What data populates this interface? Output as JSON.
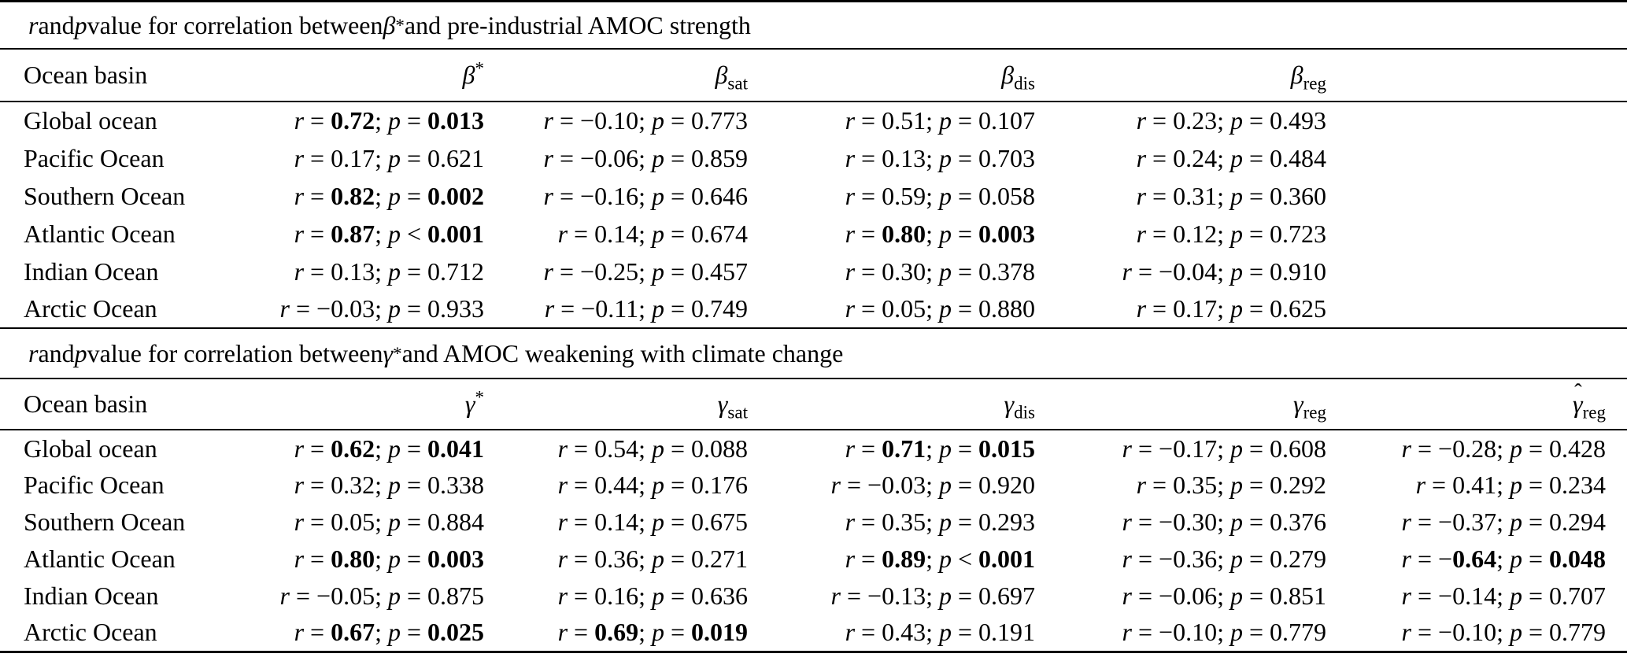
{
  "page": {
    "background": "#ffffff",
    "text_color": "#000000"
  },
  "tables": [
    {
      "title_segments": [
        {
          "t": "r",
          "i": true
        },
        {
          "t": " and "
        },
        {
          "t": "p",
          "i": true
        },
        {
          "t": " value for correlation between "
        },
        {
          "t": "β",
          "i": true
        },
        {
          "t": "*",
          "sup": true
        },
        {
          "t": " and pre-industrial AMOC strength"
        }
      ],
      "columns": [
        {
          "type": "label",
          "label": "Ocean basin"
        },
        {
          "type": "math",
          "base": "β",
          "sup": "*"
        },
        {
          "type": "math",
          "base": "β",
          "sub": "sat"
        },
        {
          "type": "math",
          "base": "β",
          "sub": "dis"
        },
        {
          "type": "math",
          "base": "β",
          "sub": "reg"
        },
        {
          "type": "empty"
        }
      ],
      "rows": [
        {
          "basin": "Global ocean",
          "cells": [
            {
              "r": "0.72",
              "op": "=",
              "p": "0.013",
              "bold": true
            },
            {
              "r": "−0.10",
              "op": "=",
              "p": "0.773",
              "bold": false
            },
            {
              "r": "0.51",
              "op": "=",
              "p": "0.107",
              "bold": false
            },
            {
              "r": "0.23",
              "op": "=",
              "p": "0.493",
              "bold": false
            },
            null
          ]
        },
        {
          "basin": "Pacific Ocean",
          "cells": [
            {
              "r": "0.17",
              "op": "=",
              "p": "0.621",
              "bold": false
            },
            {
              "r": "−0.06",
              "op": "=",
              "p": "0.859",
              "bold": false
            },
            {
              "r": "0.13",
              "op": "=",
              "p": "0.703",
              "bold": false
            },
            {
              "r": "0.24",
              "op": "=",
              "p": "0.484",
              "bold": false
            },
            null
          ]
        },
        {
          "basin": "Southern Ocean",
          "cells": [
            {
              "r": "0.82",
              "op": "=",
              "p": "0.002",
              "bold": true
            },
            {
              "r": "−0.16",
              "op": "=",
              "p": "0.646",
              "bold": false
            },
            {
              "r": "0.59",
              "op": "=",
              "p": "0.058",
              "bold": false
            },
            {
              "r": "0.31",
              "op": "=",
              "p": "0.360",
              "bold": false
            },
            null
          ]
        },
        {
          "basin": "Atlantic Ocean",
          "cells": [
            {
              "r": "0.87",
              "op": "<",
              "p": "0.001",
              "bold": true
            },
            {
              "r": "0.14",
              "op": "=",
              "p": "0.674",
              "bold": false
            },
            {
              "r": "0.80",
              "op": "=",
              "p": "0.003",
              "bold": true
            },
            {
              "r": "0.12",
              "op": "=",
              "p": "0.723",
              "bold": false
            },
            null
          ]
        },
        {
          "basin": "Indian Ocean",
          "cells": [
            {
              "r": "0.13",
              "op": "=",
              "p": "0.712",
              "bold": false
            },
            {
              "r": "−0.25",
              "op": "=",
              "p": "0.457",
              "bold": false
            },
            {
              "r": "0.30",
              "op": "=",
              "p": "0.378",
              "bold": false
            },
            {
              "r": "−0.04",
              "op": "=",
              "p": "0.910",
              "bold": false
            },
            null
          ]
        },
        {
          "basin": "Arctic Ocean",
          "cells": [
            {
              "r": "−0.03",
              "op": "=",
              "p": "0.933",
              "bold": false
            },
            {
              "r": "−0.11",
              "op": "=",
              "p": "0.749",
              "bold": false
            },
            {
              "r": "0.05",
              "op": "=",
              "p": "0.880",
              "bold": false
            },
            {
              "r": "0.17",
              "op": "=",
              "p": "0.625",
              "bold": false
            },
            null
          ]
        }
      ]
    },
    {
      "title_segments": [
        {
          "t": "r",
          "i": true
        },
        {
          "t": " and "
        },
        {
          "t": "p",
          "i": true
        },
        {
          "t": " value for correlation between "
        },
        {
          "t": "γ",
          "i": true
        },
        {
          "t": "*",
          "sup": true
        },
        {
          "t": " and AMOC weakening with climate change"
        }
      ],
      "columns": [
        {
          "type": "label",
          "label": "Ocean basin"
        },
        {
          "type": "math",
          "base": "γ",
          "sup": "*"
        },
        {
          "type": "math",
          "base": "γ",
          "sub": "sat"
        },
        {
          "type": "math",
          "base": "γ",
          "sub": "dis"
        },
        {
          "type": "math",
          "base": "γ",
          "sub": "reg"
        },
        {
          "type": "math",
          "base": "γ",
          "sub": "reg",
          "hat": true
        }
      ],
      "rows": [
        {
          "basin": "Global ocean",
          "cells": [
            {
              "r": "0.62",
              "op": "=",
              "p": "0.041",
              "bold": true
            },
            {
              "r": "0.54",
              "op": "=",
              "p": "0.088",
              "bold": false
            },
            {
              "r": "0.71",
              "op": "=",
              "p": "0.015",
              "bold": true
            },
            {
              "r": "−0.17",
              "op": "=",
              "p": "0.608",
              "bold": false
            },
            {
              "r": "−0.28",
              "op": "=",
              "p": "0.428",
              "bold": false
            }
          ]
        },
        {
          "basin": "Pacific Ocean",
          "cells": [
            {
              "r": "0.32",
              "op": "=",
              "p": "0.338",
              "bold": false
            },
            {
              "r": "0.44",
              "op": "=",
              "p": "0.176",
              "bold": false
            },
            {
              "r": "−0.03",
              "op": "=",
              "p": "0.920",
              "bold": false
            },
            {
              "r": "0.35",
              "op": "=",
              "p": "0.292",
              "bold": false
            },
            {
              "r": "0.41",
              "op": "=",
              "p": "0.234",
              "bold": false
            }
          ]
        },
        {
          "basin": "Southern Ocean",
          "cells": [
            {
              "r": "0.05",
              "op": "=",
              "p": "0.884",
              "bold": false
            },
            {
              "r": "0.14",
              "op": "=",
              "p": "0.675",
              "bold": false
            },
            {
              "r": "0.35",
              "op": "=",
              "p": "0.293",
              "bold": false
            },
            {
              "r": "−0.30",
              "op": "=",
              "p": "0.376",
              "bold": false
            },
            {
              "r": "−0.37",
              "op": "=",
              "p": "0.294",
              "bold": false
            }
          ]
        },
        {
          "basin": "Atlantic Ocean",
          "cells": [
            {
              "r": "0.80",
              "op": "=",
              "p": "0.003",
              "bold": true
            },
            {
              "r": "0.36",
              "op": "=",
              "p": "0.271",
              "bold": false
            },
            {
              "r": "0.89",
              "op": "<",
              "p": "0.001",
              "bold": true
            },
            {
              "r": "−0.36",
              "op": "=",
              "p": "0.279",
              "bold": false
            },
            {
              "r": "−0.64",
              "op": "=",
              "p": "0.048",
              "bold": true
            }
          ]
        },
        {
          "basin": "Indian Ocean",
          "cells": [
            {
              "r": "−0.05",
              "op": "=",
              "p": "0.875",
              "bold": false
            },
            {
              "r": "0.16",
              "op": "=",
              "p": "0.636",
              "bold": false
            },
            {
              "r": "−0.13",
              "op": "=",
              "p": "0.697",
              "bold": false
            },
            {
              "r": "−0.06",
              "op": "=",
              "p": "0.851",
              "bold": false
            },
            {
              "r": "−0.14",
              "op": "=",
              "p": "0.707",
              "bold": false
            }
          ]
        },
        {
          "basin": "Arctic Ocean",
          "cells": [
            {
              "r": "0.67",
              "op": "=",
              "p": "0.025",
              "bold": true
            },
            {
              "r": "0.69",
              "op": "=",
              "p": "0.019",
              "bold": true
            },
            {
              "r": "0.43",
              "op": "=",
              "p": "0.191",
              "bold": false
            },
            {
              "r": "−0.10",
              "op": "=",
              "p": "0.779",
              "bold": false
            },
            {
              "r": "−0.10",
              "op": "=",
              "p": "0.779",
              "bold": false
            }
          ]
        }
      ]
    }
  ]
}
